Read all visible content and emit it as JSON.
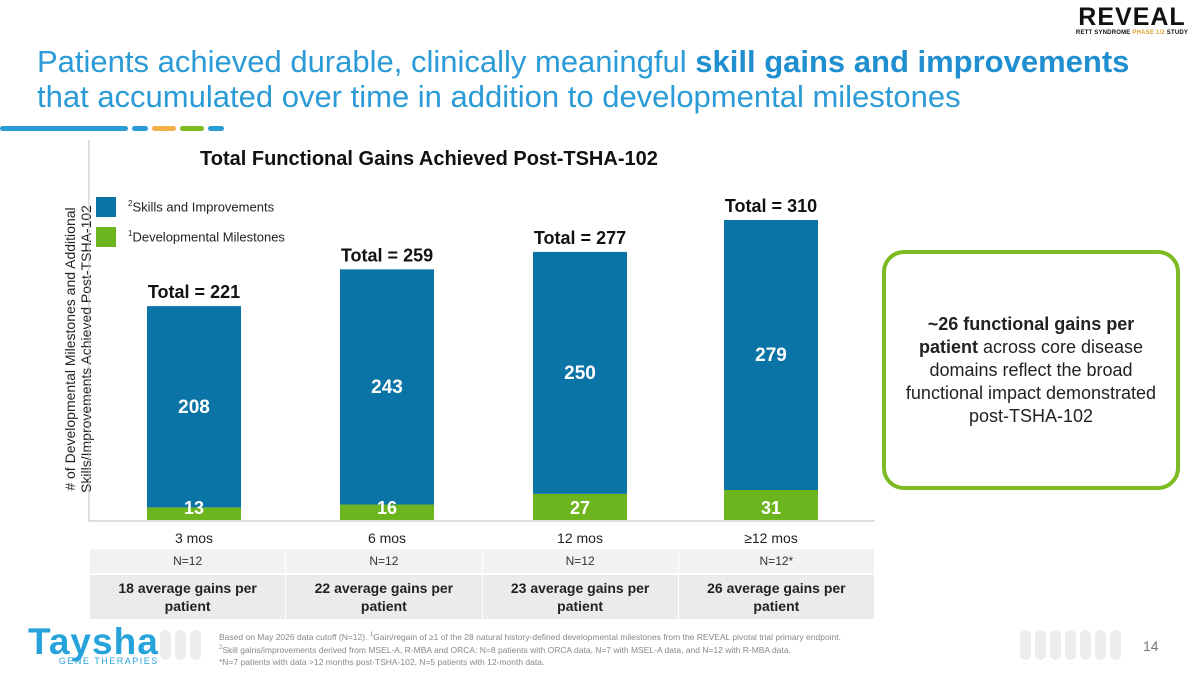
{
  "brand": {
    "reveal_word": "REVEAL",
    "reveal_sub_a": "RETT SYNDROME",
    "reveal_sub_b": "PHASE 1/2",
    "reveal_sub_c": "STUDY",
    "taysha_word": "Taysha",
    "taysha_sub": "GENE THERAPIES"
  },
  "headline": {
    "part1": "Patients achieved durable, clinically meaningful ",
    "bold": "skill gains and improvements",
    "part2": " that accumulated over time in addition to developmental milestones"
  },
  "colors": {
    "blue": "#0a74a6",
    "green": "#6cb51e",
    "headline": "#2a9bd6",
    "callout_border": "#7cbb22"
  },
  "chart_data": {
    "type": "bar",
    "stacked": true,
    "title": "Total Functional Gains Achieved Post-TSHA-102",
    "ylabel_line1": "# of Developmental Milestones and Additional",
    "ylabel_line2": "Skills/Improvements Achieved Post-TSHA-102",
    "xlabel": "",
    "categories": [
      "3 mos",
      "6 mos",
      "12 mos",
      "≥12 mos"
    ],
    "series": [
      {
        "name": "Developmental Milestones",
        "sup": "1",
        "color": "#6cb51e",
        "values": [
          13,
          16,
          27,
          31
        ]
      },
      {
        "name": "Skills and Improvements",
        "sup": "2",
        "color": "#0a74a6",
        "values": [
          208,
          243,
          250,
          279
        ]
      }
    ],
    "totals": [
      "Total = 221",
      "Total = 259",
      "Total = 277",
      "Total = 310"
    ],
    "ylim": [
      0,
      330
    ],
    "grid": false,
    "legend_position": "top-left"
  },
  "table": {
    "n_row": [
      "N=12",
      "N=12",
      "N=12",
      "N=12*"
    ],
    "gains_row": [
      "18 average gains per patient",
      "22 average gains per patient",
      "23 average gains per patient",
      "26 average gains per patient"
    ]
  },
  "callout": {
    "bold": "~26 functional gains per patient",
    "rest": " across core disease domains reflect the broad functional impact demonstrated post-TSHA-102"
  },
  "footnotes": {
    "line1a": "Based on May 2026 data cutoff (N=12). ",
    "line1b": "Gain/regain of ≥1 of the 28 natural history-defined developmental milestones from the REVEAL pivotal trial primary endpoint.",
    "line2": "Skill gains/improvements derived from MSEL-A, R-MBA and ORCA: N=8 patients with ORCA data, N=7 with MSEL-A data, and N=12 with R-MBA data.",
    "line3": "*N=7 patients with data >12 months post-TSHA-102, N=5 patients with 12-month data."
  },
  "page_number": "14"
}
